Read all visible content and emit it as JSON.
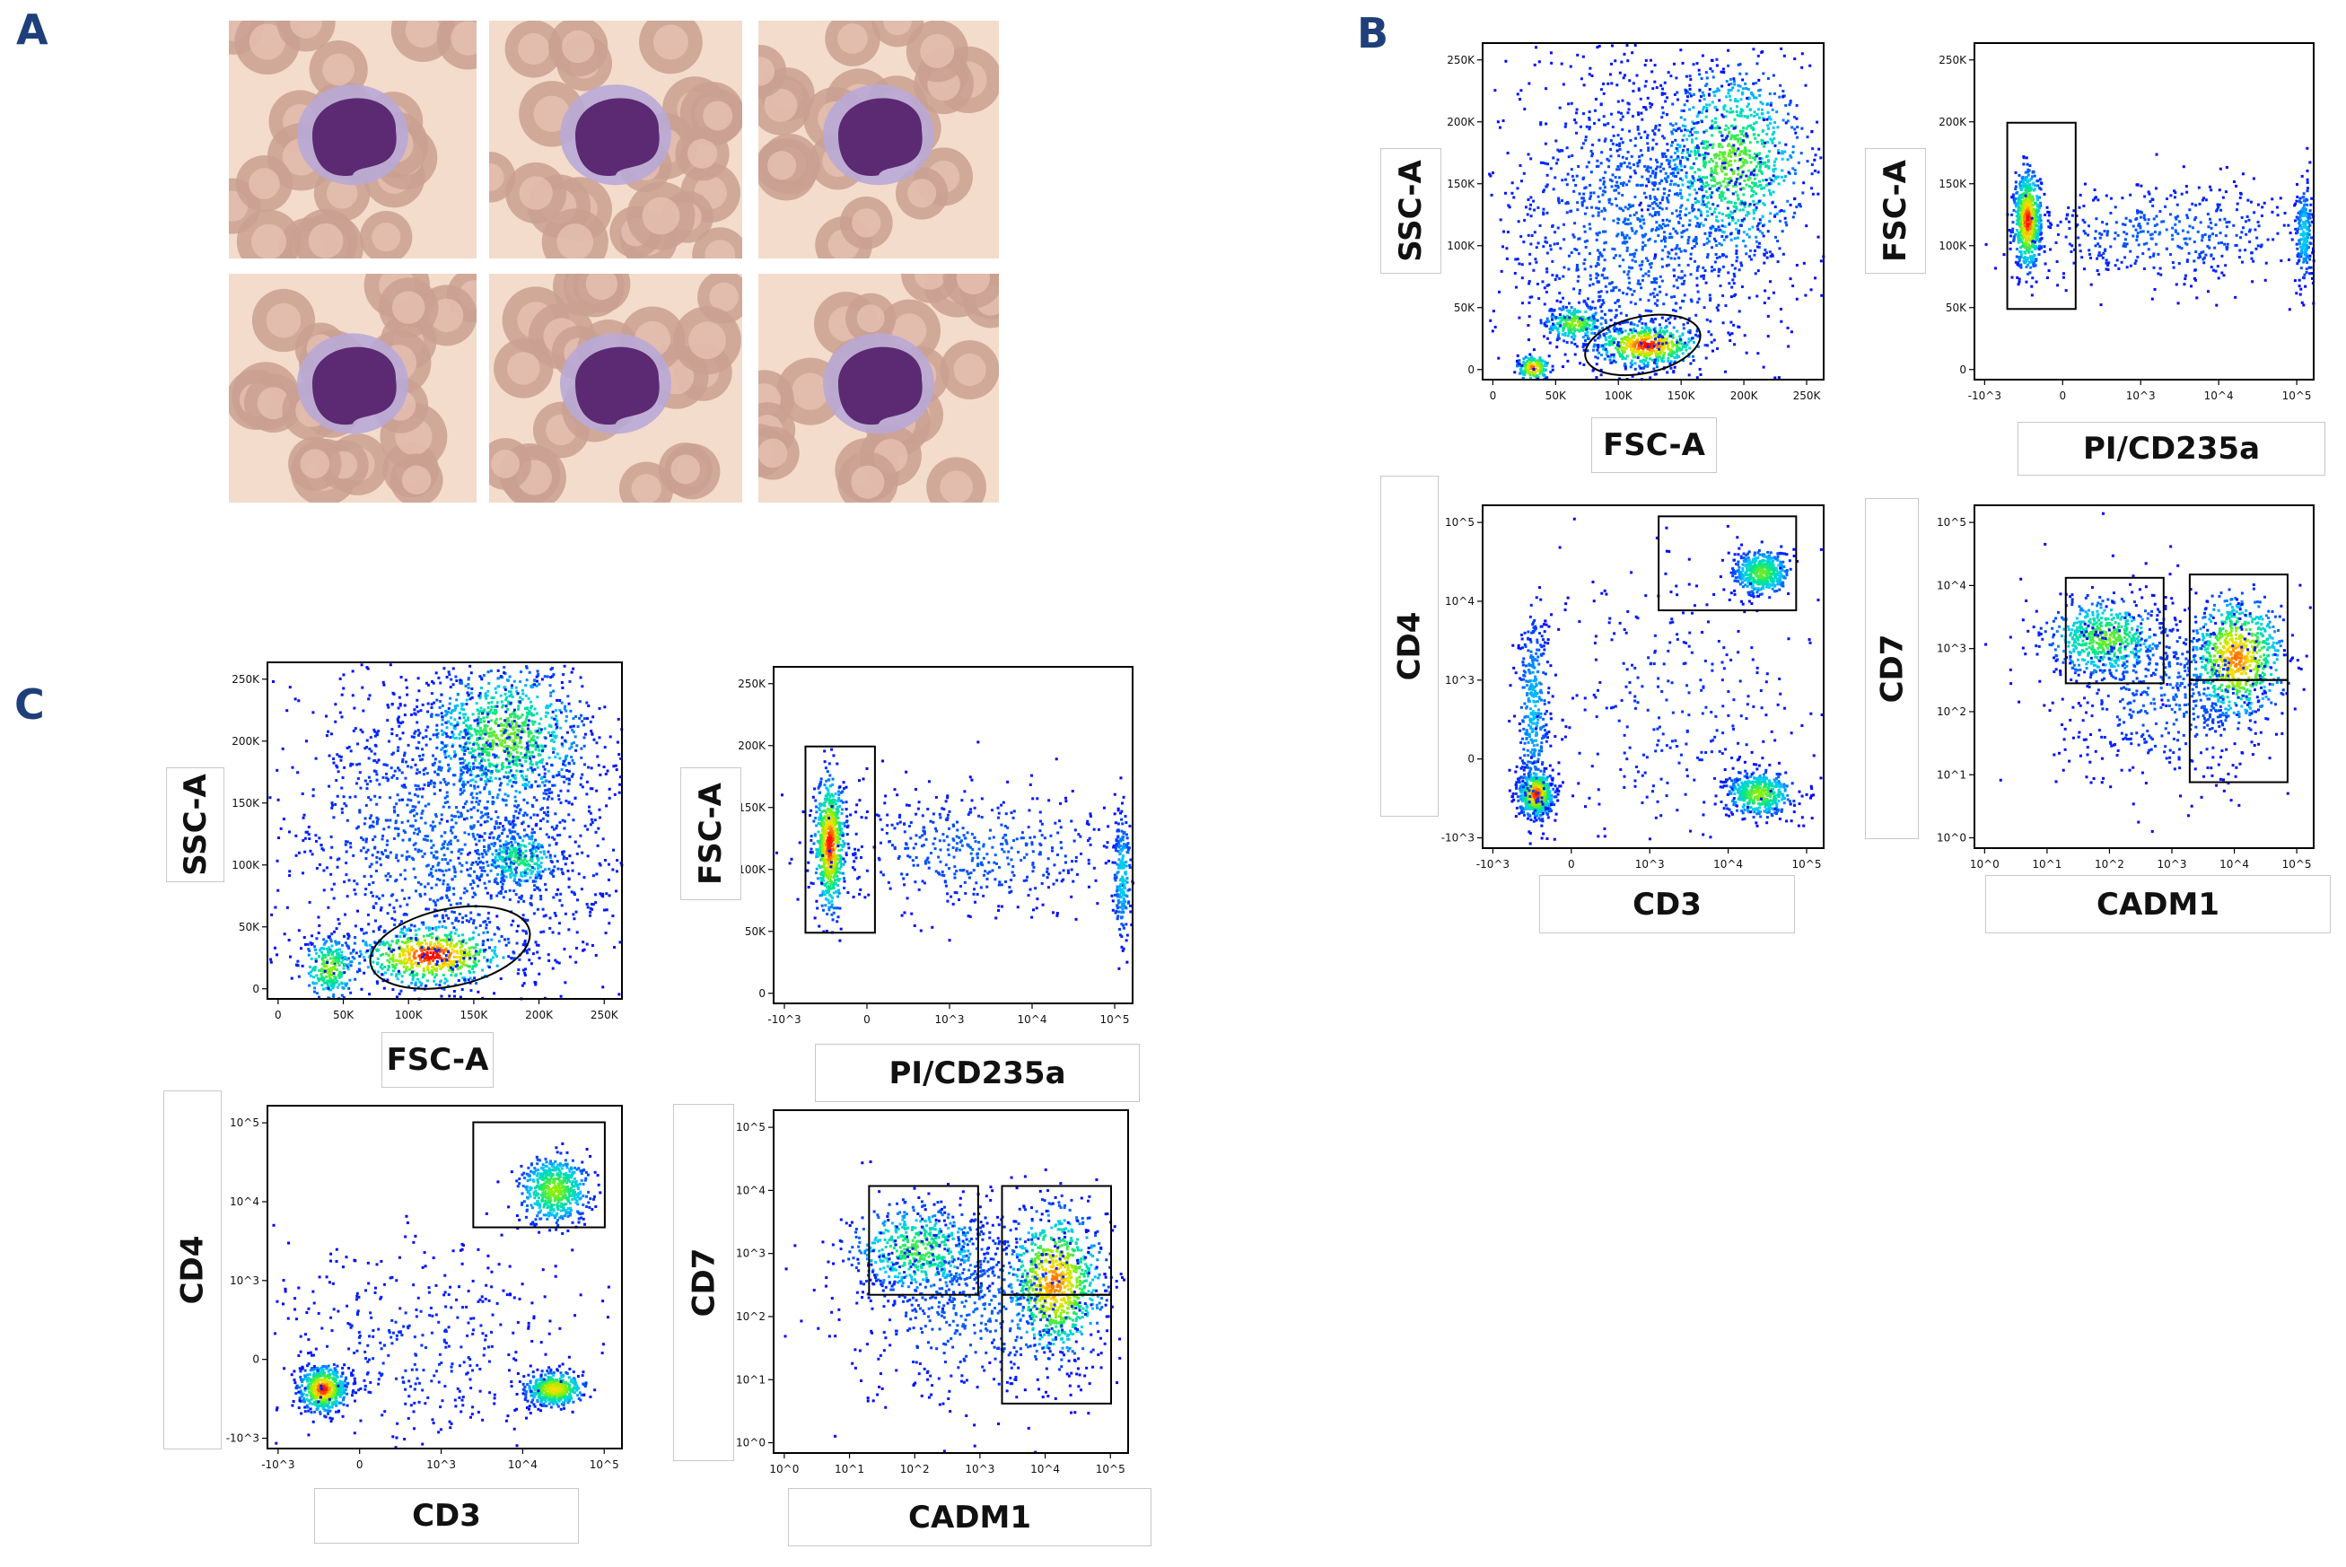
{
  "figure": {
    "panels": [
      {
        "letter": "A"
      },
      {
        "letter": "B"
      },
      {
        "letter": "C"
      }
    ]
  },
  "micrographs": [
    {
      "tile": 1
    },
    {
      "tile": 2
    },
    {
      "tile": 3
    },
    {
      "tile": 4
    },
    {
      "tile": 5
    },
    {
      "tile": 6
    }
  ],
  "colors": {
    "panel_letter": "#1f3f7a",
    "density_low": "#0000ff",
    "density_mid": "#00e5a0",
    "density_high": "#ff0000",
    "gate": "#000000",
    "rbc": "#c9a090",
    "nucleus": "#5b2a73",
    "cytoplasm": "#b9a8d6"
  },
  "chart_data": [
    {
      "id": "B1",
      "type": "scatter",
      "xlabel": "FSC-A",
      "ylabel": "SSC-A",
      "xticks": [
        "0",
        "50K",
        "100K",
        "150K",
        "200K",
        "250K"
      ],
      "yticks": [
        "0",
        "50K",
        "100K",
        "150K",
        "200K",
        "250K"
      ],
      "xlim": [
        0,
        262000
      ],
      "ylim": [
        0,
        262000
      ],
      "populations": [
        {
          "x": 190000,
          "y": 170000,
          "sx": 28000,
          "sy": 38000,
          "n": 900,
          "peak": 0.55
        },
        {
          "x": 125000,
          "y": 28000,
          "sx": 20000,
          "sy": 8000,
          "n": 500,
          "peak": 1.0
        },
        {
          "x": 70000,
          "y": 45000,
          "sx": 12000,
          "sy": 7000,
          "n": 250,
          "peak": 0.6
        },
        {
          "x": 38000,
          "y": 10000,
          "sx": 6000,
          "sy": 5000,
          "n": 150,
          "peak": 0.95
        },
        {
          "x": 120000,
          "y": 120000,
          "sx": 60000,
          "sy": 70000,
          "n": 1500,
          "peak": 0.1
        }
      ],
      "gates": [
        {
          "shape": "ellipse",
          "cx": 123000,
          "cy": 27000,
          "rx": 45000,
          "ry": 22000
        }
      ]
    },
    {
      "id": "B2",
      "type": "scatter",
      "xlabel": "PI/CD235a",
      "ylabel": "FSC-A",
      "xticks": [
        "-10^3",
        "0",
        "10^3",
        "10^4",
        "10^5"
      ],
      "yticks": [
        "0",
        "50K",
        "100K",
        "150K",
        "200K",
        "250K"
      ],
      "xlim": [
        -1,
        5.2
      ],
      "ylim": [
        0,
        262000
      ],
      "populations": [
        {
          "x": -0.05,
          "y": 125000,
          "sx": 0.12,
          "sy": 18000,
          "n": 700,
          "peak": 1.0
        },
        {
          "x": 2.5,
          "y": 115000,
          "sx": 1.4,
          "sy": 20000,
          "n": 450,
          "peak": 0.1
        },
        {
          "x": 5.0,
          "y": 115000,
          "sx": 0.08,
          "sy": 20000,
          "n": 200,
          "peak": 0.25
        }
      ],
      "gates": [
        {
          "shape": "rect",
          "x1": -0.4,
          "x2": 0.85,
          "y1": 55000,
          "y2": 200000
        }
      ]
    },
    {
      "id": "B3",
      "type": "scatter",
      "xlabel": "CD3",
      "ylabel": "CD4",
      "xticks": [
        "-10^3",
        "0",
        "10^3",
        "10^4",
        "10^5"
      ],
      "yticks": [
        "-10^3",
        "0",
        "10^3",
        "10^4",
        "10^5"
      ],
      "xlim": [
        -1,
        5.2
      ],
      "ylim": [
        -1,
        5.2
      ],
      "populations": [
        {
          "x": -0.05,
          "y": 0.0,
          "sx": 0.15,
          "sy": 0.2,
          "n": 600,
          "peak": 1.0
        },
        {
          "x": -0.1,
          "y": 1.5,
          "sx": 0.15,
          "sy": 1.0,
          "n": 350,
          "peak": 0.2
        },
        {
          "x": 4.05,
          "y": 4.0,
          "sx": 0.25,
          "sy": 0.2,
          "n": 450,
          "peak": 0.55
        },
        {
          "x": 4.0,
          "y": 0.0,
          "sx": 0.3,
          "sy": 0.2,
          "n": 450,
          "peak": 0.6
        },
        {
          "x": 2.5,
          "y": 1.5,
          "sx": 1.3,
          "sy": 1.5,
          "n": 350,
          "peak": 0.05
        }
      ],
      "gates": [
        {
          "shape": "rect",
          "x1": 2.2,
          "x2": 4.7,
          "y1": 3.3,
          "y2": 5.0
        }
      ]
    },
    {
      "id": "B4",
      "type": "scatter",
      "xlabel": "CADM1",
      "ylabel": "CD7",
      "xticks": [
        "10^0",
        "10^1",
        "10^2",
        "10^3",
        "10^4",
        "10^5"
      ],
      "yticks": [
        "10^0",
        "10^1",
        "10^2",
        "10^3",
        "10^4",
        "10^5"
      ],
      "xlim": [
        0,
        5.2
      ],
      "ylim": [
        0,
        5.2
      ],
      "populations": [
        {
          "x": 2.0,
          "y": 3.2,
          "sx": 0.45,
          "sy": 0.3,
          "n": 550,
          "peak": 0.55
        },
        {
          "x": 4.0,
          "y": 2.9,
          "sx": 0.35,
          "sy": 0.45,
          "n": 700,
          "peak": 0.9
        },
        {
          "x": 3.0,
          "y": 2.4,
          "sx": 0.9,
          "sy": 0.7,
          "n": 600,
          "peak": 0.1
        }
      ],
      "gates": [
        {
          "shape": "rect",
          "x1": 1.4,
          "x2": 2.9,
          "y1": 2.5,
          "y2": 4.1
        },
        {
          "shape": "rect",
          "x1": 3.3,
          "x2": 4.8,
          "y1": 2.55,
          "y2": 4.15
        },
        {
          "shape": "rect",
          "x1": 3.3,
          "x2": 4.8,
          "y1": 1.0,
          "y2": 2.55
        }
      ]
    },
    {
      "id": "C1",
      "type": "scatter",
      "xlabel": "FSC-A",
      "ylabel": "SSC-A",
      "xticks": [
        "0",
        "50K",
        "100K",
        "150K",
        "200K",
        "250K"
      ],
      "yticks": [
        "0",
        "50K",
        "100K",
        "150K",
        "200K",
        "250K"
      ],
      "xlim": [
        0,
        262000
      ],
      "ylim": [
        0,
        262000
      ],
      "populations": [
        {
          "x": 175000,
          "y": 205000,
          "sx": 30000,
          "sy": 28000,
          "n": 900,
          "peak": 0.55
        },
        {
          "x": 185000,
          "y": 110000,
          "sx": 15000,
          "sy": 12000,
          "n": 300,
          "peak": 0.45
        },
        {
          "x": 120000,
          "y": 35000,
          "sx": 28000,
          "sy": 12000,
          "n": 600,
          "peak": 1.0
        },
        {
          "x": 45000,
          "y": 25000,
          "sx": 10000,
          "sy": 12000,
          "n": 250,
          "peak": 0.6
        },
        {
          "x": 140000,
          "y": 130000,
          "sx": 70000,
          "sy": 70000,
          "n": 1700,
          "peak": 0.1
        }
      ],
      "gates": [
        {
          "shape": "ellipse",
          "cx": 135000,
          "cy": 40000,
          "rx": 60000,
          "ry": 30000
        }
      ]
    },
    {
      "id": "C2",
      "type": "scatter",
      "xlabel": "PI/CD235a",
      "ylabel": "FSC-A",
      "xticks": [
        "-10^3",
        "0",
        "10^3",
        "10^4",
        "10^5"
      ],
      "yticks": [
        "0",
        "50K",
        "100K",
        "150K",
        "200K",
        "250K"
      ],
      "xlim": [
        -1,
        5.2
      ],
      "ylim": [
        0,
        262000
      ],
      "populations": [
        {
          "x": -0.05,
          "y": 125000,
          "sx": 0.13,
          "sy": 25000,
          "n": 700,
          "peak": 1.0
        },
        {
          "x": 2.5,
          "y": 120000,
          "sx": 1.4,
          "sy": 25000,
          "n": 500,
          "peak": 0.1
        },
        {
          "x": 5.0,
          "y": 100000,
          "sx": 0.08,
          "sy": 25000,
          "n": 200,
          "peak": 0.25
        }
      ],
      "gates": [
        {
          "shape": "rect",
          "x1": -0.45,
          "x2": 0.75,
          "y1": 55000,
          "y2": 200000
        }
      ]
    },
    {
      "id": "C3",
      "type": "scatter",
      "xlabel": "CD3",
      "ylabel": "CD4",
      "xticks": [
        "-10^3",
        "0",
        "10^3",
        "10^4",
        "10^5"
      ],
      "yticks": [
        "-10^3",
        "0",
        "10^3",
        "10^4",
        "10^5"
      ],
      "xlim": [
        -1,
        5.2
      ],
      "ylim": [
        -1,
        5.2
      ],
      "populations": [
        {
          "x": -0.05,
          "y": 0.1,
          "sx": 0.2,
          "sy": 0.2,
          "n": 550,
          "peak": 1.0
        },
        {
          "x": 4.0,
          "y": 3.7,
          "sx": 0.3,
          "sy": 0.3,
          "n": 550,
          "peak": 0.6
        },
        {
          "x": 4.0,
          "y": 0.1,
          "sx": 0.25,
          "sy": 0.15,
          "n": 450,
          "peak": 0.8
        },
        {
          "x": 1.5,
          "y": 0.8,
          "sx": 1.5,
          "sy": 1.0,
          "n": 450,
          "peak": 0.05
        }
      ],
      "gates": [
        {
          "shape": "rect",
          "x1": 2.6,
          "x2": 4.9,
          "y1": 3.0,
          "y2": 4.9
        }
      ]
    },
    {
      "id": "C4",
      "type": "scatter",
      "xlabel": "CADM1",
      "ylabel": "CD7",
      "xticks": [
        "10^0",
        "10^1",
        "10^2",
        "10^3",
        "10^4",
        "10^5"
      ],
      "yticks": [
        "10^0",
        "10^1",
        "10^2",
        "10^3",
        "10^4",
        "10^5"
      ],
      "xlim": [
        0,
        5.2
      ],
      "ylim": [
        0,
        5.2
      ],
      "populations": [
        {
          "x": 2.1,
          "y": 3.1,
          "sx": 0.5,
          "sy": 0.35,
          "n": 550,
          "peak": 0.5
        },
        {
          "x": 4.1,
          "y": 2.6,
          "sx": 0.35,
          "sy": 0.55,
          "n": 800,
          "peak": 0.9
        },
        {
          "x": 3.0,
          "y": 2.3,
          "sx": 1.0,
          "sy": 0.8,
          "n": 700,
          "peak": 0.1
        }
      ],
      "gates": [
        {
          "shape": "rect",
          "x1": 1.4,
          "x2": 3.0,
          "y1": 2.4,
          "y2": 4.05
        },
        {
          "shape": "rect",
          "x1": 3.35,
          "x2": 4.95,
          "y1": 2.4,
          "y2": 4.05
        },
        {
          "shape": "rect",
          "x1": 3.35,
          "x2": 4.95,
          "y1": 0.75,
          "y2": 2.4
        }
      ]
    }
  ]
}
